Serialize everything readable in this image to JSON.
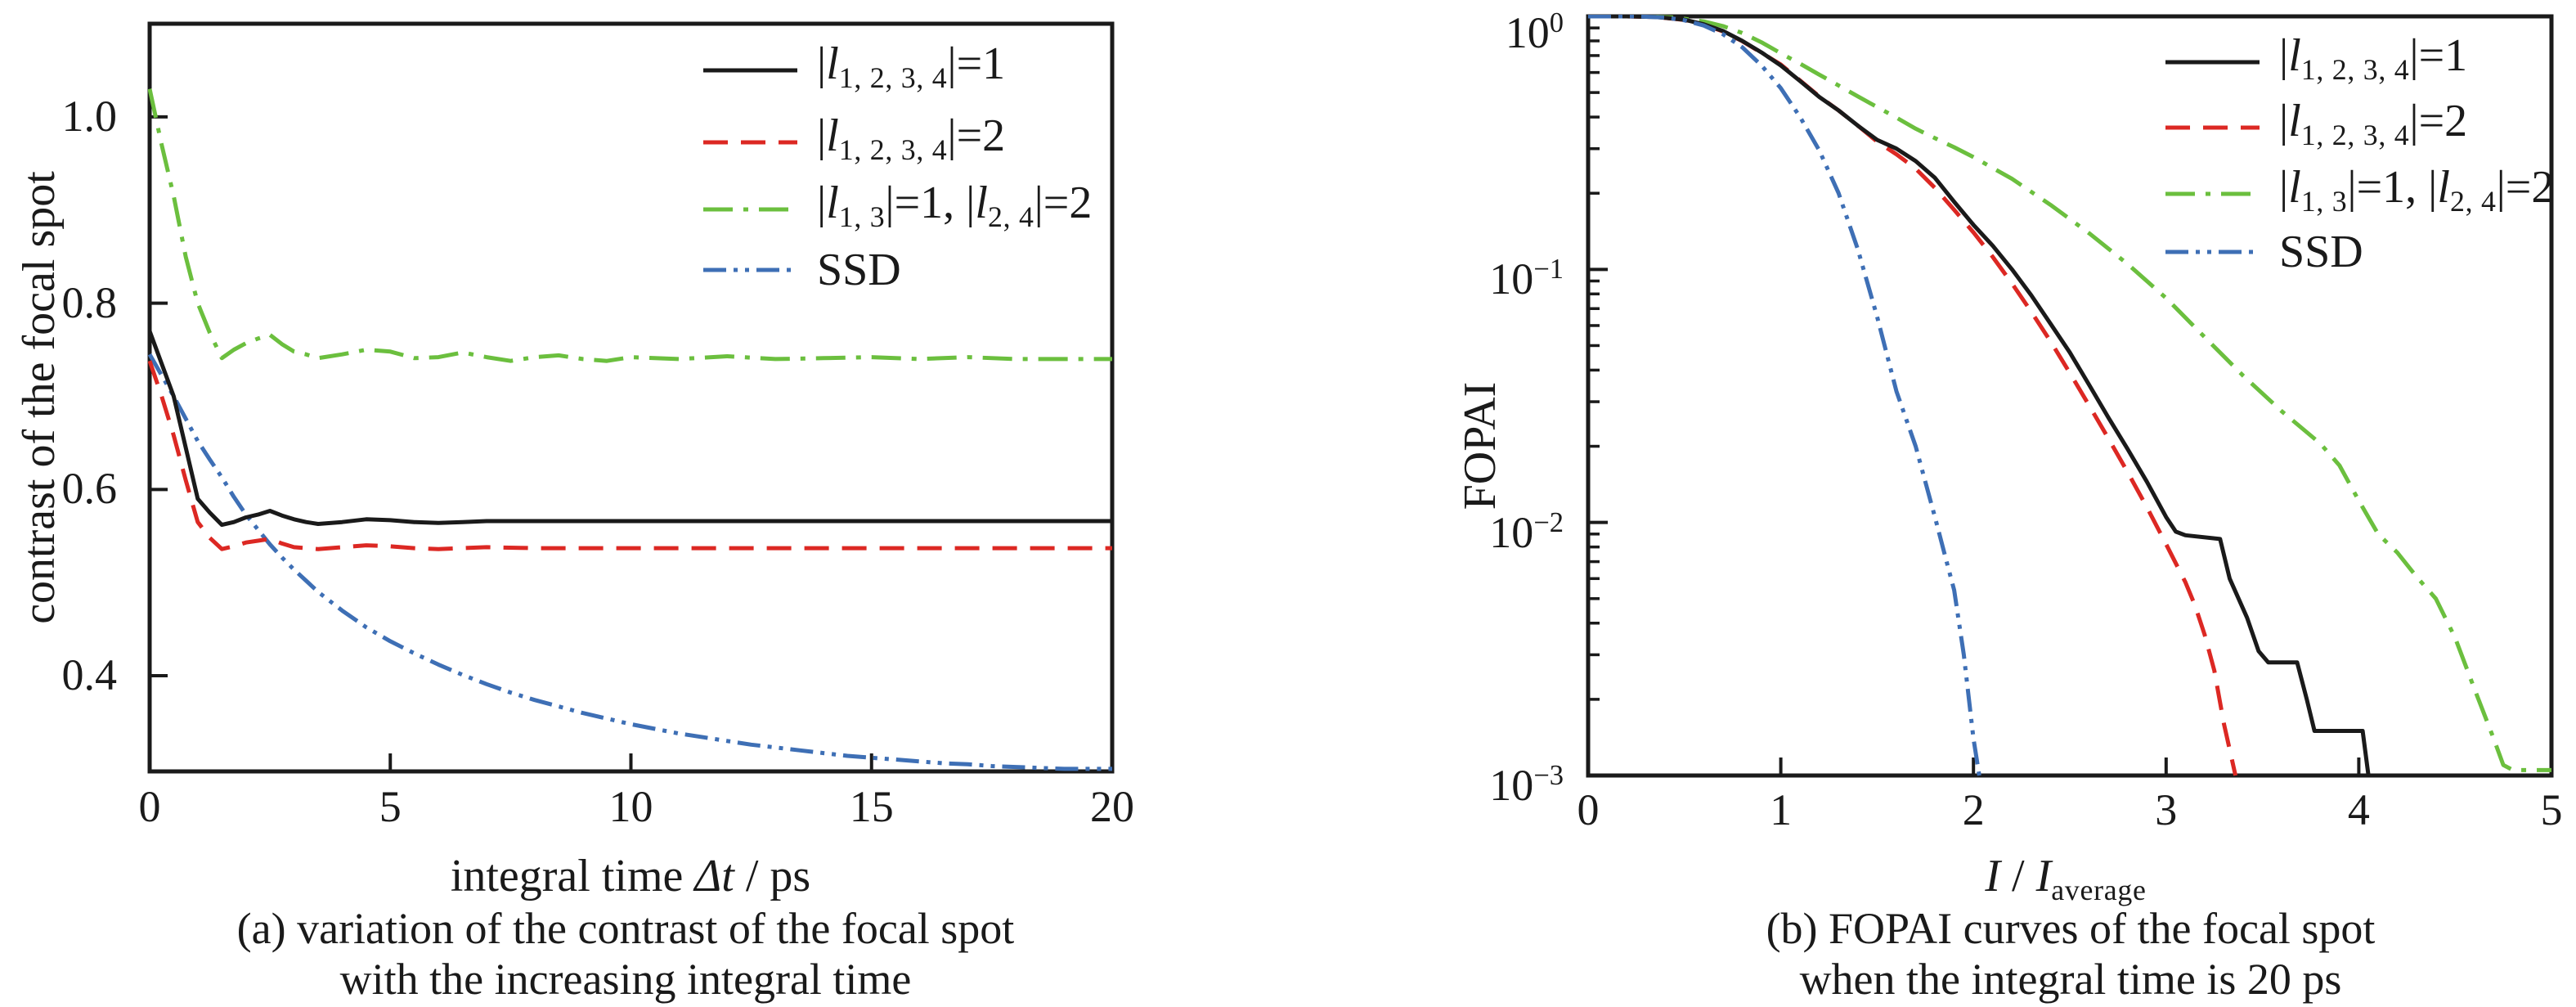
{
  "figure": {
    "background": "#ffffff",
    "colors": {
      "black": "#1a1a1a",
      "red": "#dc2823",
      "green": "#6bbf3e",
      "blue": "#3e6fb5",
      "axis": "#1a1a1a"
    }
  },
  "legend_labels": [
    [
      {
        "t": "|"
      },
      {
        "t": "l",
        "s": "i"
      },
      {
        "t": "1, 2, 3, 4",
        "s": "sub"
      },
      {
        "t": "|=1"
      }
    ],
    [
      {
        "t": "|"
      },
      {
        "t": "l",
        "s": "i"
      },
      {
        "t": "1, 2, 3, 4",
        "s": "sub"
      },
      {
        "t": "|=2"
      }
    ],
    [
      {
        "t": "|"
      },
      {
        "t": "l",
        "s": "i"
      },
      {
        "t": "1, 3",
        "s": "sub"
      },
      {
        "t": "|=1, |"
      },
      {
        "t": "l",
        "s": "i"
      },
      {
        "t": "2, 4",
        "s": "sub"
      },
      {
        "t": "|=2"
      }
    ],
    [
      {
        "t": "SSD"
      }
    ]
  ],
  "panel_a": {
    "ylabel": "contrast of the focal spot",
    "xlabel_segments": [
      {
        "t": "integral time "
      },
      {
        "t": "Δt",
        "s": "i"
      },
      {
        "t": " / ps"
      }
    ],
    "caption_line1": "(a) variation of the contrast of the focal spot",
    "caption_line2": "with the increasing integral time",
    "ytick_labels": [
      "1.0",
      "0.8",
      "0.6",
      "0.4"
    ],
    "ytick_values": [
      1.0,
      0.8,
      0.6,
      0.4
    ],
    "xtick_labels": [
      "0",
      "5",
      "10",
      "15",
      "20"
    ],
    "xtick_values": [
      0,
      5,
      10,
      15,
      20
    ]
  },
  "panel_b": {
    "ylabel": "FOPAI",
    "xlabel_segments": [
      {
        "t": "I",
        "s": "i"
      },
      {
        "t": " / "
      },
      {
        "t": "I",
        "s": "i"
      },
      {
        "t": "average",
        "s": "sub"
      }
    ],
    "caption_line1": "(b) FOPAI curves of the focal spot",
    "caption_line2": "when the integral time is 20 ps",
    "ytick_rich": [
      [
        {
          "t": "10"
        },
        {
          "t": "0",
          "s": "sup"
        }
      ],
      [
        {
          "t": "10"
        },
        {
          "t": "−1",
          "s": "sup"
        }
      ],
      [
        {
          "t": "10"
        },
        {
          "t": "−2",
          "s": "sup"
        }
      ],
      [
        {
          "t": "10"
        },
        {
          "t": "−3",
          "s": "sup"
        }
      ]
    ],
    "ytick_values": [
      1,
      0.1,
      0.01,
      0.001
    ],
    "xtick_labels": [
      "0",
      "1",
      "2",
      "3",
      "4",
      "5"
    ],
    "xtick_values": [
      0,
      1,
      2,
      3,
      4,
      5
    ]
  },
  "chart_data": [
    {
      "type": "line",
      "title": "variation of the contrast of the focal spot with the increasing integral time",
      "xlabel": "integral time Δt / ps",
      "ylabel": "contrast of the focal spot",
      "xlim": [
        0,
        20
      ],
      "ylim": [
        0.297,
        1.1
      ],
      "xticks": [
        0,
        5,
        10,
        15,
        20
      ],
      "yticks": [
        0.4,
        0.6,
        0.8,
        1.0
      ],
      "grid": false,
      "legend_position": "top-right",
      "series": [
        {
          "name": "|l1,2,3,4|=1",
          "color": "#1a1a1a",
          "dash": "solid",
          "x": [
            0,
            0.25,
            0.5,
            0.75,
            1,
            1.25,
            1.5,
            1.75,
            2,
            2.25,
            2.5,
            2.75,
            3,
            3.25,
            3.5,
            4,
            4.5,
            5,
            5.5,
            6,
            6.5,
            7,
            8,
            9,
            10,
            11,
            12,
            13,
            14,
            15,
            16,
            17,
            18,
            19,
            20
          ],
          "y": [
            0.77,
            0.735,
            0.7,
            0.645,
            0.59,
            0.575,
            0.562,
            0.565,
            0.57,
            0.573,
            0.577,
            0.572,
            0.568,
            0.565,
            0.563,
            0.565,
            0.568,
            0.567,
            0.565,
            0.564,
            0.565,
            0.566,
            0.566,
            0.566,
            0.566,
            0.566,
            0.566,
            0.566,
            0.566,
            0.566,
            0.566,
            0.566,
            0.566,
            0.566,
            0.566
          ]
        },
        {
          "name": "|l1,2,3,4|=2",
          "color": "#dc2823",
          "dash": "dashed",
          "x": [
            0,
            0.25,
            0.5,
            0.75,
            1,
            1.25,
            1.5,
            1.75,
            2,
            2.25,
            2.5,
            2.75,
            3,
            3.5,
            4,
            4.5,
            5,
            5.5,
            6,
            7,
            8,
            9,
            10,
            11,
            12,
            13,
            14,
            15,
            16,
            17,
            18,
            19,
            20
          ],
          "y": [
            0.738,
            0.7,
            0.658,
            0.61,
            0.565,
            0.548,
            0.536,
            0.539,
            0.543,
            0.545,
            0.547,
            0.542,
            0.538,
            0.536,
            0.538,
            0.54,
            0.539,
            0.537,
            0.536,
            0.538,
            0.537,
            0.537,
            0.537,
            0.537,
            0.537,
            0.537,
            0.537,
            0.537,
            0.537,
            0.537,
            0.537,
            0.537,
            0.537
          ]
        },
        {
          "name": "|l1,3|=1, |l2,4|=2",
          "color": "#6bbf3e",
          "dash": "dashdot",
          "x": [
            0,
            0.25,
            0.5,
            0.75,
            1,
            1.25,
            1.5,
            1.75,
            2,
            2.25,
            2.5,
            2.75,
            3,
            3.25,
            3.5,
            4,
            4.5,
            5,
            5.5,
            6,
            6.5,
            7,
            7.5,
            8,
            8.5,
            9,
            9.5,
            10,
            11,
            12,
            13,
            14,
            15,
            16,
            17,
            18,
            19,
            20
          ],
          "y": [
            1.03,
            0.97,
            0.915,
            0.85,
            0.8,
            0.768,
            0.741,
            0.75,
            0.757,
            0.762,
            0.766,
            0.756,
            0.748,
            0.745,
            0.741,
            0.745,
            0.75,
            0.748,
            0.741,
            0.742,
            0.747,
            0.742,
            0.738,
            0.742,
            0.744,
            0.74,
            0.738,
            0.742,
            0.74,
            0.743,
            0.74,
            0.741,
            0.742,
            0.74,
            0.742,
            0.74,
            0.74,
            0.74
          ]
        },
        {
          "name": "SSD",
          "color": "#3e6fb5",
          "dash": "dashdotdot",
          "x": [
            0,
            0.5,
            1,
            1.25,
            1.5,
            1.75,
            2,
            2.25,
            2.5,
            2.75,
            3,
            3.25,
            3.5,
            4,
            4.5,
            5,
            5.5,
            6,
            6.5,
            7,
            7.5,
            8,
            8.5,
            9,
            9.5,
            10,
            10.5,
            11,
            11.5,
            12,
            12.5,
            13,
            13.5,
            14,
            14.5,
            15,
            15.5,
            16,
            16.5,
            17,
            17.5,
            18,
            18.5,
            19,
            19.5,
            20
          ],
          "y": [
            0.745,
            0.7,
            0.652,
            0.632,
            0.613,
            0.592,
            0.573,
            0.557,
            0.541,
            0.527,
            0.514,
            0.502,
            0.49,
            0.47,
            0.452,
            0.437,
            0.424,
            0.412,
            0.401,
            0.391,
            0.382,
            0.374,
            0.367,
            0.36,
            0.354,
            0.348,
            0.343,
            0.338,
            0.334,
            0.33,
            0.326,
            0.323,
            0.32,
            0.317,
            0.314,
            0.312,
            0.31,
            0.308,
            0.306,
            0.305,
            0.303,
            0.302,
            0.301,
            0.3,
            0.3,
            0.3
          ]
        }
      ]
    },
    {
      "type": "line",
      "title": "FOPAI curves of the focal spot when the integral time is 20 ps",
      "xlabel": "I / I_average",
      "ylabel": "FOPAI",
      "yscale": "log",
      "xlim": [
        0,
        5
      ],
      "ylim": [
        0.001,
        1
      ],
      "xticks": [
        0,
        1,
        2,
        3,
        4,
        5
      ],
      "yticks": [
        1,
        0.1,
        0.01,
        0.001
      ],
      "grid": false,
      "legend_position": "top-right",
      "series": [
        {
          "name": "|l1,2,3,4|=1",
          "color": "#1a1a1a",
          "dash": "solid",
          "x": [
            0,
            0.2,
            0.35,
            0.5,
            0.6,
            0.7,
            0.8,
            0.9,
            1.0,
            1.1,
            1.2,
            1.3,
            1.4,
            1.5,
            1.6,
            1.7,
            1.8,
            1.9,
            2.0,
            2.1,
            2.2,
            2.3,
            2.4,
            2.5,
            2.6,
            2.7,
            2.8,
            2.9,
            3.0,
            3.05,
            3.1,
            3.28,
            3.33,
            3.42,
            3.48,
            3.53,
            3.68,
            3.73,
            3.77,
            4.02,
            4.05
          ],
          "y": [
            1,
            1,
            0.995,
            0.97,
            0.93,
            0.875,
            0.8,
            0.72,
            0.64,
            0.555,
            0.48,
            0.425,
            0.37,
            0.325,
            0.3,
            0.268,
            0.23,
            0.185,
            0.15,
            0.124,
            0.1,
            0.079,
            0.061,
            0.047,
            0.035,
            0.026,
            0.0195,
            0.0145,
            0.0105,
            0.0092,
            0.0089,
            0.0086,
            0.006,
            0.0042,
            0.0031,
            0.0028,
            0.0028,
            0.002,
            0.0015,
            0.0015,
            0.001
          ]
        },
        {
          "name": "|l1,2,3,4|=2",
          "color": "#dc2823",
          "dash": "dashed",
          "x": [
            0,
            0.2,
            0.35,
            0.5,
            0.6,
            0.7,
            0.8,
            0.9,
            1.0,
            1.1,
            1.2,
            1.3,
            1.4,
            1.5,
            1.6,
            1.7,
            1.8,
            1.9,
            2.0,
            2.1,
            2.2,
            2.3,
            2.4,
            2.5,
            2.6,
            2.7,
            2.8,
            2.9,
            3.0,
            3.1,
            3.15,
            3.2,
            3.25,
            3.3,
            3.36
          ],
          "y": [
            1,
            1,
            0.995,
            0.968,
            0.928,
            0.872,
            0.798,
            0.718,
            0.645,
            0.558,
            0.482,
            0.425,
            0.37,
            0.32,
            0.285,
            0.25,
            0.21,
            0.172,
            0.14,
            0.112,
            0.088,
            0.068,
            0.052,
            0.039,
            0.029,
            0.0215,
            0.0158,
            0.0115,
            0.0082,
            0.0058,
            0.0047,
            0.0036,
            0.0026,
            0.0016,
            0.001
          ]
        },
        {
          "name": "|l1,3|=1, |l2,4|=2",
          "color": "#6bbf3e",
          "dash": "dashdot",
          "x": [
            0,
            0.3,
            0.45,
            0.6,
            0.7,
            0.8,
            0.9,
            1.0,
            1.1,
            1.2,
            1.3,
            1.4,
            1.5,
            1.6,
            1.7,
            1.8,
            1.9,
            2.0,
            2.2,
            2.4,
            2.6,
            2.8,
            3.0,
            3.2,
            3.4,
            3.6,
            3.8,
            3.9,
            4.0,
            4.1,
            4.2,
            4.3,
            4.4,
            4.5,
            4.6,
            4.7,
            4.75,
            4.8,
            5.0
          ],
          "y": [
            1,
            1,
            0.99,
            0.955,
            0.915,
            0.86,
            0.79,
            0.715,
            0.65,
            0.588,
            0.533,
            0.483,
            0.438,
            0.398,
            0.36,
            0.33,
            0.304,
            0.278,
            0.228,
            0.18,
            0.139,
            0.105,
            0.077,
            0.054,
            0.038,
            0.0275,
            0.0205,
            0.0168,
            0.0122,
            0.009,
            0.0076,
            0.0061,
            0.005,
            0.0035,
            0.0022,
            0.0014,
            0.0011,
            0.00105,
            0.00105
          ]
        },
        {
          "name": "SSD",
          "color": "#3e6fb5",
          "dash": "dashdotdot",
          "x": [
            0,
            0.25,
            0.4,
            0.5,
            0.6,
            0.7,
            0.8,
            0.9,
            1.0,
            1.1,
            1.2,
            1.3,
            1.4,
            1.5,
            1.6,
            1.7,
            1.8,
            1.85,
            1.9,
            1.95,
            2.0,
            2.03
          ],
          "y": [
            1,
            1,
            0.99,
            0.965,
            0.92,
            0.85,
            0.755,
            0.64,
            0.52,
            0.4,
            0.295,
            0.2,
            0.12,
            0.065,
            0.033,
            0.02,
            0.0105,
            0.0075,
            0.0054,
            0.003,
            0.0014,
            0.001
          ]
        }
      ]
    }
  ]
}
